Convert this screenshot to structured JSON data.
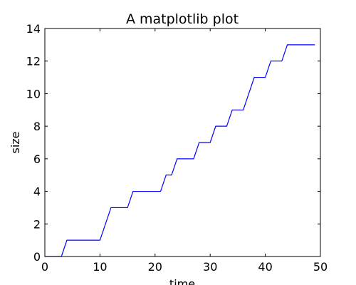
{
  "chart_data": {
    "type": "line",
    "title": "A matplotlib plot",
    "xlabel": "time",
    "ylabel": "size",
    "xlim": [
      0,
      50
    ],
    "ylim": [
      0,
      14
    ],
    "xticks": [
      "0",
      "10",
      "20",
      "30",
      "40",
      "50"
    ],
    "yticks": [
      "0",
      "2",
      "4",
      "6",
      "8",
      "10",
      "12",
      "14"
    ],
    "grid": false,
    "line_color": "#0000ff",
    "series": [
      {
        "x": [
          0,
          3,
          4,
          10,
          12,
          15,
          16,
          21,
          22,
          23,
          24,
          27,
          28,
          30,
          31,
          33,
          34,
          36,
          38,
          40,
          41,
          43,
          44,
          49
        ],
        "y": [
          0,
          0,
          1,
          1,
          3,
          3,
          4,
          4,
          5,
          5,
          6,
          6,
          7,
          7,
          8,
          8,
          9,
          9,
          11,
          11,
          12,
          12,
          13,
          13
        ]
      }
    ]
  }
}
